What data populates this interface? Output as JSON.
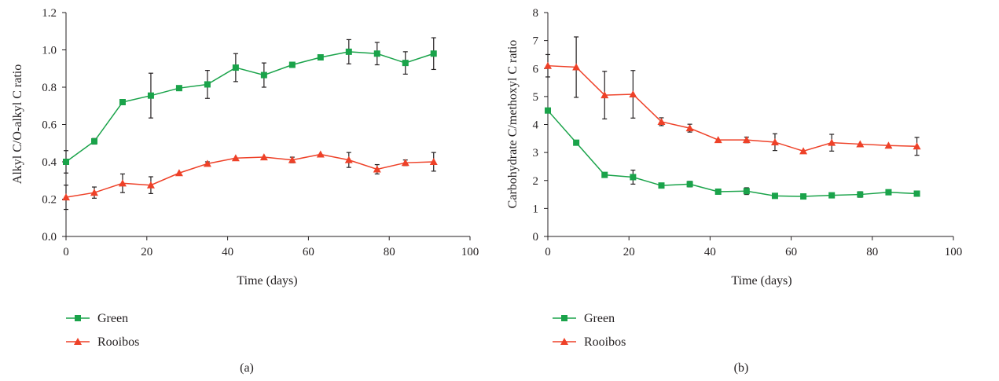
{
  "chart_data": [
    {
      "type": "line",
      "panel_label": "(a)",
      "xlabel": "Time (days)",
      "ylabel": "Alkyl C/O-alkyl C ratio",
      "xlim": [
        0,
        100
      ],
      "ylim": [
        0,
        1.2
      ],
      "xticks": [
        "0",
        "20",
        "40",
        "60",
        "80",
        "100"
      ],
      "yticks": [
        "0.0",
        "0.2",
        "0.4",
        "0.6",
        "0.8",
        "1.0",
        "1.2"
      ],
      "grid": false,
      "legend_position": "bottom-left",
      "series": [
        {
          "name": "Green",
          "color": "#1aa34a",
          "marker": "square",
          "x": [
            0,
            7,
            14,
            21,
            28,
            35,
            42,
            49,
            56,
            63,
            70,
            77,
            84,
            91
          ],
          "y": [
            0.4,
            0.51,
            0.72,
            0.755,
            0.795,
            0.815,
            0.905,
            0.865,
            0.92,
            0.96,
            0.99,
            0.98,
            0.93,
            0.98
          ],
          "err": [
            0.06,
            0.015,
            0.0,
            0.12,
            0.0,
            0.075,
            0.075,
            0.065,
            0.0,
            0.0,
            0.065,
            0.06,
            0.06,
            0.085
          ]
        },
        {
          "name": "Rooibos",
          "color": "#ee4128",
          "marker": "triangle",
          "x": [
            0,
            7,
            14,
            21,
            28,
            35,
            42,
            49,
            56,
            63,
            70,
            77,
            84,
            91
          ],
          "y": [
            0.21,
            0.235,
            0.285,
            0.275,
            0.34,
            0.39,
            0.42,
            0.425,
            0.41,
            0.44,
            0.41,
            0.36,
            0.395,
            0.4
          ],
          "err": [
            0.065,
            0.03,
            0.05,
            0.045,
            0.0,
            0.01,
            0.0,
            0.0,
            0.015,
            0.0,
            0.04,
            0.025,
            0.015,
            0.05
          ]
        }
      ]
    },
    {
      "type": "line",
      "panel_label": "(b)",
      "xlabel": "Time (days)",
      "ylabel": "Carbohydrate C/methoxyl C ratio",
      "xlim": [
        0,
        100
      ],
      "ylim": [
        0,
        8
      ],
      "xticks": [
        "0",
        "20",
        "40",
        "60",
        "80",
        "100"
      ],
      "yticks": [
        "0",
        "1",
        "2",
        "3",
        "4",
        "5",
        "6",
        "7",
        "8"
      ],
      "grid": false,
      "legend_position": "bottom-left",
      "series": [
        {
          "name": "Green",
          "color": "#1aa34a",
          "marker": "square",
          "x": [
            0,
            7,
            14,
            21,
            28,
            35,
            42,
            49,
            56,
            63,
            70,
            77,
            84,
            91
          ],
          "y": [
            4.5,
            3.35,
            2.2,
            2.12,
            1.82,
            1.87,
            1.6,
            1.62,
            1.45,
            1.43,
            1.47,
            1.5,
            1.58,
            1.53
          ],
          "err": [
            0.0,
            0.0,
            0.0,
            0.25,
            0.0,
            0.1,
            0.0,
            0.12,
            0.0,
            0.0,
            0.0,
            0.1,
            0.0,
            0.0
          ]
        },
        {
          "name": "Rooibos",
          "color": "#ee4128",
          "marker": "triangle",
          "x": [
            0,
            7,
            14,
            21,
            28,
            35,
            42,
            49,
            56,
            63,
            70,
            77,
            84,
            91
          ],
          "y": [
            6.1,
            6.05,
            5.05,
            5.08,
            4.1,
            3.87,
            3.45,
            3.45,
            3.37,
            3.05,
            3.35,
            3.3,
            3.25,
            3.22
          ],
          "err": [
            0.4,
            1.08,
            0.85,
            0.85,
            0.14,
            0.14,
            0.0,
            0.1,
            0.3,
            0.0,
            0.3,
            0.0,
            0.0,
            0.32
          ]
        }
      ]
    }
  ]
}
